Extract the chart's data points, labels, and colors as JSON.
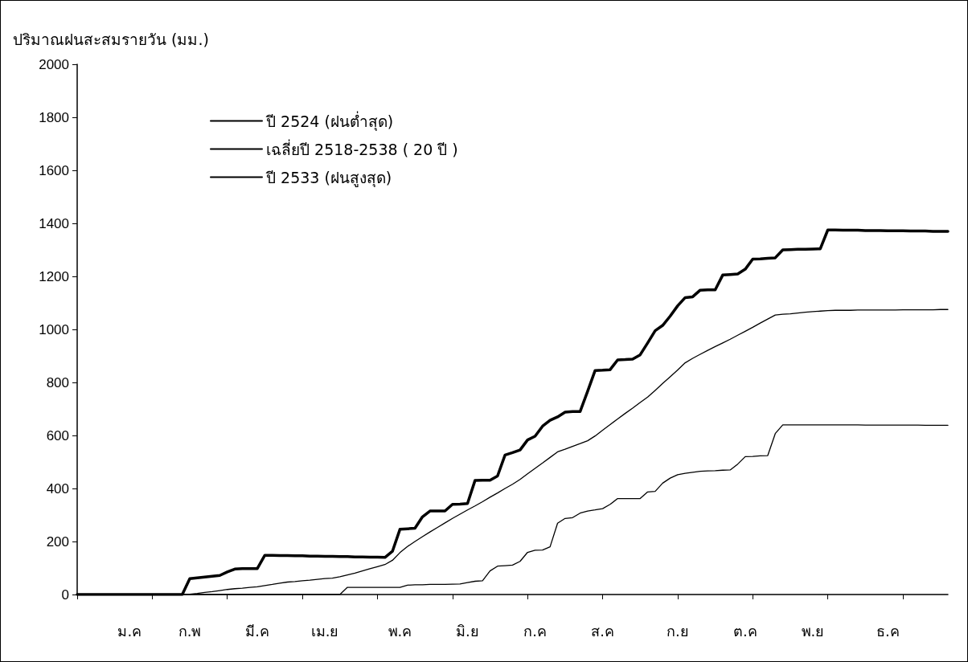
{
  "chart_data": {
    "type": "line",
    "ylabel": "ปริมาณฝนสะสมรายวัน (มม.)",
    "categories": [
      null,
      null,
      null,
      null,
      null,
      null,
      null,
      "ม.ค",
      null,
      null,
      null,
      null,
      null,
      null,
      null,
      "ก.พ",
      null,
      null,
      null,
      null,
      null,
      null,
      null,
      null,
      "มี.ค",
      null,
      null,
      null,
      null,
      null,
      null,
      null,
      null,
      "เม.ย",
      null,
      null,
      null,
      null,
      null,
      null,
      null,
      null,
      null,
      "พ.ค",
      null,
      null,
      null,
      null,
      null,
      null,
      null,
      null,
      "มิ.ย",
      null,
      null,
      null,
      null,
      null,
      null,
      null,
      null,
      "ก.ค",
      null,
      null,
      null,
      null,
      null,
      null,
      null,
      null,
      "ส.ค",
      null,
      null,
      null,
      null,
      null,
      null,
      null,
      null,
      null,
      "ก.ย",
      null,
      null,
      null,
      null,
      null,
      null,
      null,
      null,
      "ต.ค",
      null,
      null,
      null,
      null,
      null,
      null,
      null,
      null,
      "พ.ย",
      null,
      null,
      null,
      null,
      null,
      null,
      null,
      null,
      null,
      "ธ.ค",
      null,
      null,
      null,
      null,
      null,
      null,
      null,
      null
    ],
    "ylim": [
      0,
      2000
    ],
    "yticks": [
      0,
      200,
      400,
      600,
      800,
      1000,
      1200,
      1400,
      1600,
      1800,
      2000
    ],
    "grid": false,
    "legend": "top left",
    "marker": "none",
    "line_style": "solid",
    "series": [
      {
        "name": "ปี 2524 (ฝนต่ำสุด)",
        "color": "#000000",
        "values": [
          0,
          0,
          0,
          0,
          0,
          0,
          0,
          0,
          0,
          0,
          0,
          0,
          0,
          0,
          0,
          0,
          0,
          0,
          0,
          0,
          0,
          0,
          0,
          0,
          0,
          0,
          0,
          0,
          0,
          0,
          0,
          0,
          0,
          0,
          0,
          0,
          27,
          27,
          27,
          27,
          27,
          27,
          27,
          27,
          35,
          37,
          37,
          38,
          38,
          38,
          39,
          40,
          45,
          50,
          52,
          89,
          107,
          109,
          111,
          125,
          159,
          167,
          168,
          180,
          269,
          287,
          290,
          307,
          315,
          319,
          324,
          340,
          362,
          362,
          362,
          362,
          387,
          389,
          420,
          439,
          452,
          457,
          461,
          465,
          466,
          467,
          469,
          470,
          492,
          520,
          521,
          523,
          524,
          607,
          640,
          640,
          640,
          640,
          640,
          640,
          640,
          640,
          640,
          640,
          640,
          639,
          639,
          639,
          639,
          639,
          639,
          639,
          639,
          638,
          638,
          638,
          638
        ]
      },
      {
        "name": "เฉลี่ยปี 2518-2538 ( 20 ปี )",
        "color": "#000000",
        "values": [
          0,
          0,
          0,
          0,
          0,
          0,
          0,
          0,
          0,
          0,
          0,
          0,
          0,
          0,
          0,
          1,
          4,
          8,
          11,
          15,
          19,
          22,
          24,
          27,
          29,
          34,
          38,
          43,
          47,
          49,
          52,
          54,
          57,
          60,
          62,
          67,
          74,
          81,
          89,
          97,
          105,
          113,
          129,
          158,
          181,
          200,
          218,
          236,
          253,
          270,
          287,
          303,
          319,
          334,
          350,
          367,
          383,
          400,
          416,
          434,
          455,
          476,
          496,
          517,
          538,
          548,
          559,
          569,
          580,
          598,
          620,
          641,
          662,
          683,
          703,
          724,
          745,
          770,
          796,
          821,
          847,
          874,
          891,
          906,
          921,
          935,
          949,
          963,
          978,
          993,
          1008,
          1024,
          1039,
          1054,
          1057,
          1059,
          1062,
          1065,
          1067,
          1069,
          1071,
          1072,
          1072,
          1072,
          1073,
          1073,
          1073,
          1073,
          1073,
          1073,
          1074,
          1074,
          1074,
          1074,
          1074,
          1075,
          1075
        ]
      },
      {
        "name": "ปี 2533 (ฝนสูงสุด)",
        "color": "#000000",
        "values": [
          0,
          0,
          0,
          0,
          0,
          0,
          0,
          0,
          0,
          0,
          0,
          0,
          0,
          0,
          0,
          60,
          63,
          66,
          69,
          72,
          85,
          96,
          98,
          98,
          98,
          148,
          148,
          147,
          147,
          146,
          146,
          145,
          145,
          144,
          144,
          143,
          143,
          142,
          142,
          141,
          141,
          140,
          163,
          246,
          248,
          250,
          293,
          315,
          315,
          315,
          340,
          341,
          343,
          430,
          431,
          431,
          447,
          526,
          535,
          545,
          583,
          597,
          635,
          657,
          670,
          688,
          690,
          690,
          766,
          845,
          846,
          848,
          885,
          886,
          888,
          904,
          949,
          995,
          1015,
          1050,
          1089,
          1120,
          1123,
          1148,
          1149,
          1149,
          1205,
          1207,
          1209,
          1227,
          1265,
          1266,
          1268,
          1270,
          1300,
          1301,
          1302,
          1302,
          1303,
          1304,
          1375,
          1375,
          1374,
          1374,
          1374,
          1373,
          1373,
          1373,
          1372,
          1372,
          1372,
          1371,
          1371,
          1371,
          1370,
          1370,
          1370
        ]
      }
    ]
  }
}
